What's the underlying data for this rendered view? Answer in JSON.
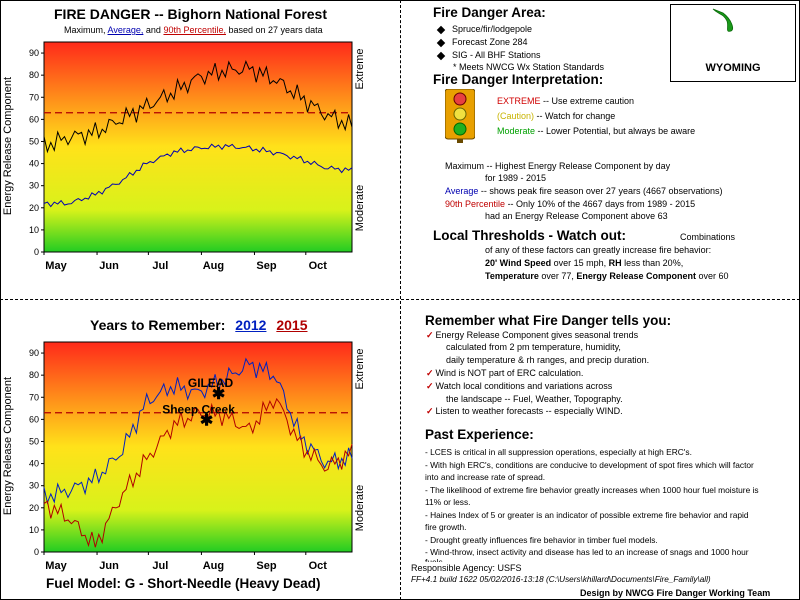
{
  "colors": {
    "average": "#0000b0",
    "p90": "#c00000",
    "max": "#000000",
    "y2012": "#0020c0",
    "y2015": "#b00000",
    "caution": "#c8b400",
    "moderate": "#00a000",
    "extreme": "#d00000"
  },
  "left_top": {
    "title": "FIRE DANGER -- Bighorn National Forest",
    "subtitle": {
      "p1": "Maximum,",
      "avg": "Average,",
      "p2": "and",
      "p90": "90th Percentile,",
      "p3": "based on 27 years data"
    }
  },
  "left_bottom": {
    "title_prefix": "Years to Remember:",
    "year_a": "2012",
    "year_b": "2015",
    "footer": "Fuel Model: G - Short-Needle (Heavy Dead)"
  },
  "chart_data": [
    {
      "type": "line",
      "title": "FIRE DANGER -- Bighorn National Forest",
      "ylabel": "Energy Release Component",
      "right_labels": [
        "Extreme",
        "Moderate"
      ],
      "ylim": [
        0,
        95
      ],
      "yticks": [
        "0",
        "10",
        "20",
        "30",
        "40",
        "50",
        "60",
        "70",
        "80",
        "90"
      ],
      "xticks": [
        "May",
        "Jun",
        "Jul",
        "Aug",
        "Sep",
        "Oct"
      ],
      "threshold": 63,
      "x_days": [
        0,
        15,
        30,
        45,
        60,
        75,
        90,
        105,
        120,
        135,
        150,
        165,
        180
      ],
      "series": [
        {
          "name": "Maximum",
          "values": [
            48,
            52,
            54,
            60,
            66,
            72,
            79,
            82,
            83,
            78,
            70,
            62,
            57
          ]
        },
        {
          "name": "Average",
          "values": [
            22,
            22,
            26,
            32,
            40,
            45,
            47,
            48,
            47,
            45,
            42,
            38,
            37
          ]
        },
        {
          "name": "90th Percentile",
          "values": [
            63,
            63,
            63,
            63,
            63,
            63,
            63,
            63,
            63,
            63,
            63,
            63,
            63
          ]
        }
      ]
    },
    {
      "type": "line",
      "title": "Years to Remember: 2012 2015",
      "ylabel": "Energy Release Component",
      "right_labels": [
        "Extreme",
        "Moderate"
      ],
      "ylim": [
        0,
        95
      ],
      "yticks": [
        "0",
        "10",
        "20",
        "30",
        "40",
        "50",
        "60",
        "70",
        "80",
        "90"
      ],
      "xticks": [
        "May",
        "Jun",
        "Jul",
        "Aug",
        "Sep",
        "Oct"
      ],
      "threshold": 63,
      "x_days": [
        0,
        15,
        30,
        45,
        60,
        75,
        90,
        105,
        120,
        135,
        150,
        165,
        180
      ],
      "series": [
        {
          "name": "2012",
          "values": [
            25,
            28,
            33,
            45,
            68,
            75,
            72,
            78,
            85,
            80,
            52,
            40,
            43
          ]
        },
        {
          "name": "2015",
          "values": [
            22,
            15,
            3,
            25,
            42,
            57,
            63,
            62,
            55,
            70,
            48,
            38,
            45
          ]
        }
      ],
      "annotations": [
        {
          "label": "GILEAD",
          "x": 102,
          "y": 72
        },
        {
          "label": "Sheep Creek",
          "x": 95,
          "y": 60
        }
      ]
    }
  ],
  "area": {
    "heading": "Fire Danger Area:",
    "bullets": [
      "Spruce/fir/lodgepole",
      "Forecast Zone 284",
      "SIG - All BHF Stations"
    ],
    "note": "* Meets NWCG Wx Station Standards",
    "state": "WYOMING"
  },
  "interpretation": {
    "heading": "Fire Danger Interpretation:",
    "extreme_word": "EXTREME",
    "extreme_text": "-- Use extreme caution",
    "caution_word": "(Caution)",
    "caution_text": "-- Watch for change",
    "moderate_word": "Moderate",
    "moderate_text": "-- Lower Potential, but always be aware",
    "max_line": "Maximum  -- Highest Energy Release Component by day",
    "max_line2": "for 1989 - 2015",
    "avg_word": "Average",
    "avg_text": "-- shows peak fire season over 27 years (4667 observations)",
    "p90_word": "90th Percentile",
    "p90_text": "-- Only 10% of the 4667 days from 1989 - 2015",
    "p90_text2": "had an Energy Release Component above 63"
  },
  "thresholds": {
    "heading": "Local Thresholds - Watch out:",
    "tail": "Combinations",
    "line2": "of any of these factors can greatly increase fire behavior:",
    "line3_bold": "20' Wind Speed",
    "line3_mid": "over 15 mph,",
    "line3_rh": "RH",
    "line3_end": "less than 20%,",
    "line4_temp": "Temperature",
    "line4_mid": "over 77,",
    "line4_erc": "Energy Release Component",
    "line4_end": "over 60"
  },
  "remember": {
    "heading": "Remember what Fire Danger tells you:",
    "l1": "Energy Release Component gives seasonal trends",
    "l2": "calculated from 2 pm temperature, humidity,",
    "l3": "daily temperature & rh ranges, and precip duration.",
    "l4": "Wind is NOT part of ERC calculation.",
    "l5": "Watch local conditions and variations across",
    "l6": "the landscape -- Fuel, Weather, Topography.",
    "l7": "Listen to weather forecasts -- especially WIND."
  },
  "experience": {
    "heading": "Past Experience:",
    "l1": "- LCES is critical in all suppression operations, especially at high ERC's.",
    "l2": "- With high ERC's, conditions are conducive to development of spot fires which will factor",
    "l3": "into and increase rate of spread.",
    "l4": "- The likelihood of extreme fire behavior greatly increases when 1000 hour fuel moisture is",
    "l5": "11% or less.",
    "l6": "- Haines Index of 5 or greater is an indicator of possible extreme fire behavior and rapid",
    "l7": "fire growth.",
    "l8": "- Drought greatly influences fire behavior in timber fuel models.",
    "l9": "- Wind-throw, insect activity and disease has led to an increase of snags and 1000 hour",
    "l10": "fuels."
  },
  "footer": {
    "agency": "Responsible Agency: USFS",
    "build": "FF+4.1 build 1622 05/02/2016-13:18 (C:\\Users\\khillard\\Documents\\Fire_Family\\all)",
    "credit": "Design by NWCG Fire Danger Working Team"
  }
}
